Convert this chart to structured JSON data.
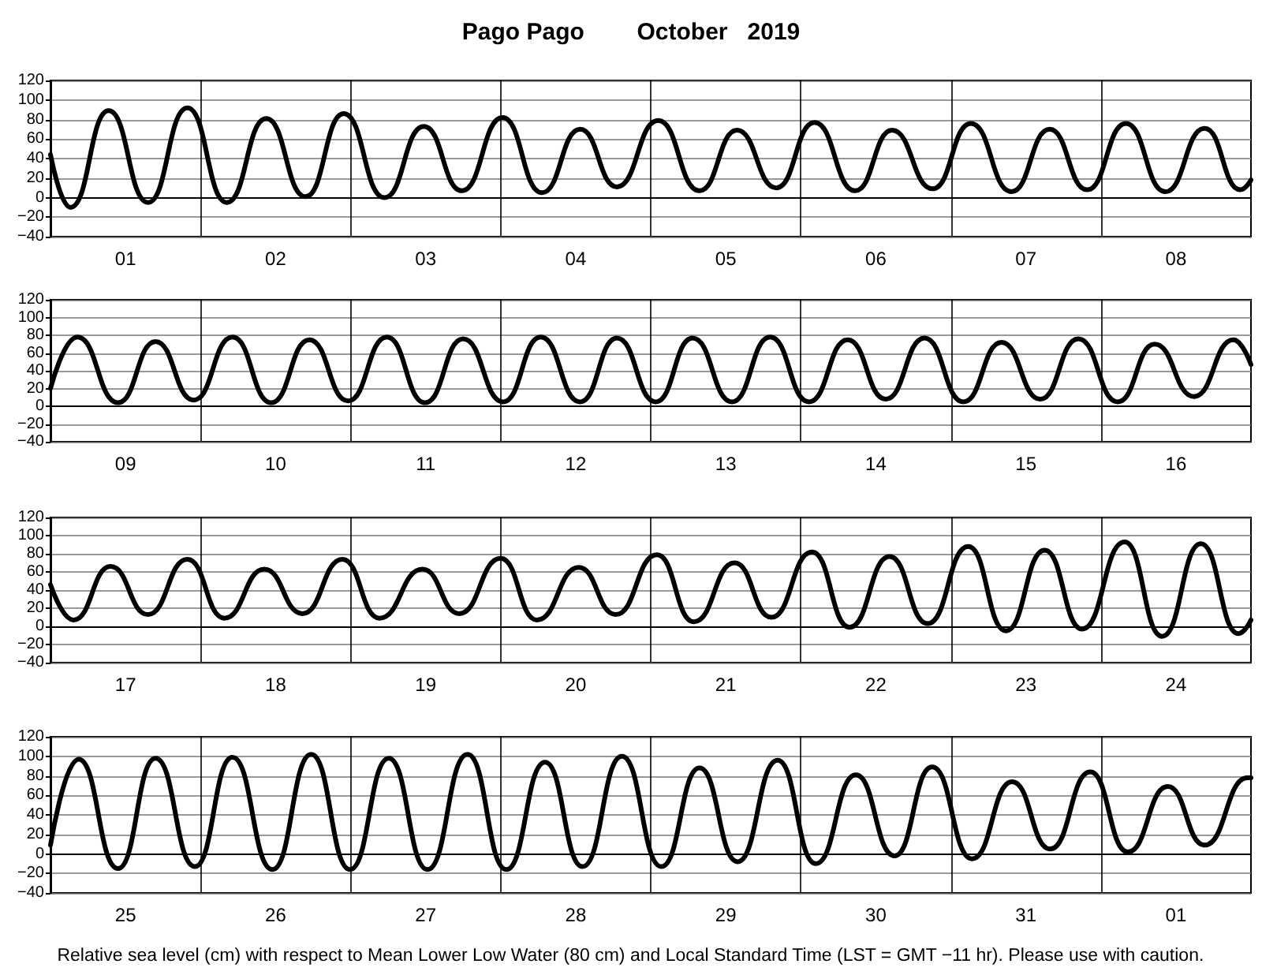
{
  "chart_data": [
    {
      "type": "line",
      "title": "Pago Pago        October   2019",
      "color": "#000000",
      "grid": true,
      "x": [
        "2019-10-01T00:00",
        "2019-10-01T03:12",
        "2019-10-01T09:18",
        "2019-10-01T15:36",
        "2019-10-01T21:54",
        "2019-10-02T04:12",
        "2019-10-02T10:30",
        "2019-10-02T16:48",
        "2019-10-02T22:54",
        "2019-10-03T05:24",
        "2019-10-03T11:42",
        "2019-10-03T17:48",
        "2019-10-04T00:18",
        "2019-10-04T06:36",
        "2019-10-04T12:42",
        "2019-10-04T18:36",
        "2019-10-05T01:12",
        "2019-10-05T07:48",
        "2019-10-05T13:48",
        "2019-10-05T20:06",
        "2019-10-06T02:12",
        "2019-10-06T08:42",
        "2019-10-06T14:36",
        "2019-10-06T21:06",
        "2019-10-07T03:12",
        "2019-10-07T09:42",
        "2019-10-07T15:48",
        "2019-10-07T21:48",
        "2019-10-08T04:00",
        "2019-10-08T10:18",
        "2019-10-08T16:36",
        "2019-10-08T22:18",
        "2019-10-09T00:00"
      ],
      "values": [
        44,
        -10,
        89,
        -5,
        92,
        -5,
        81,
        1,
        86,
        0,
        73,
        7,
        82,
        5,
        70,
        11,
        79,
        7,
        69,
        10,
        77,
        7,
        69,
        9,
        76,
        6,
        70,
        8,
        76,
        6,
        71,
        8,
        18
      ],
      "xlim": [
        "2019-10-01",
        "2019-10-09"
      ],
      "xticks": [
        {
          "value": "2019-10-01T12:00",
          "label": "01"
        },
        {
          "value": "2019-10-02",
          "label": null
        },
        {
          "value": "2019-10-02T12:00",
          "label": "02"
        },
        {
          "value": "2019-10-03",
          "label": null
        },
        {
          "value": "2019-10-03T12:00",
          "label": "03"
        },
        {
          "value": "2019-10-04",
          "label": null
        },
        {
          "value": "2019-10-04T12:00",
          "label": "04"
        },
        {
          "value": "2019-10-05",
          "label": null
        },
        {
          "value": "2019-10-05T12:00",
          "label": "05"
        },
        {
          "value": "2019-10-06",
          "label": null
        },
        {
          "value": "2019-10-06T12:00",
          "label": "06"
        },
        {
          "value": "2019-10-07",
          "label": null
        },
        {
          "value": "2019-10-07T12:00",
          "label": "07"
        },
        {
          "value": "2019-10-08",
          "label": null
        },
        {
          "value": "2019-10-08T12:00",
          "label": "08"
        }
      ],
      "ylim": [
        -40,
        120
      ],
      "yticks": [
        -40,
        -20,
        0,
        20,
        40,
        60,
        80,
        100,
        120
      ]
    },
    {
      "type": "line",
      "color": "#000000",
      "grid": true,
      "x": [
        "2019-10-09T00:00",
        "2019-10-09T04:18",
        "2019-10-09T10:48",
        "2019-10-09T16:48",
        "2019-10-09T22:54",
        "2019-10-10T05:06",
        "2019-10-10T11:18",
        "2019-10-10T17:24",
        "2019-10-10T23:36",
        "2019-10-11T05:48",
        "2019-10-11T11:54",
        "2019-10-11T18:00",
        "2019-10-12T00:24",
        "2019-10-12T06:24",
        "2019-10-12T12:42",
        "2019-10-12T18:36",
        "2019-10-13T00:48",
        "2019-10-13T06:42",
        "2019-10-13T13:00",
        "2019-10-13T19:06",
        "2019-10-14T01:18",
        "2019-10-14T07:30",
        "2019-10-14T13:36",
        "2019-10-14T19:48",
        "2019-10-15T02:00",
        "2019-10-15T08:06",
        "2019-10-15T14:18",
        "2019-10-15T20:24",
        "2019-10-16T02:42",
        "2019-10-16T08:36",
        "2019-10-16T14:54",
        "2019-10-16T21:12",
        "2019-10-17T00:00"
      ],
      "values": [
        20,
        78,
        4,
        73,
        7,
        78,
        4,
        75,
        6,
        78,
        4,
        76,
        5,
        78,
        5,
        77,
        5,
        77,
        5,
        78,
        5,
        75,
        8,
        77,
        5,
        72,
        8,
        76,
        5,
        70,
        11,
        75,
        47
      ],
      "xlim": [
        "2019-10-09",
        "2019-10-17"
      ],
      "xticks": [
        {
          "value": "2019-10-09T12:00",
          "label": "09"
        },
        {
          "value": "2019-10-10",
          "label": null
        },
        {
          "value": "2019-10-10T12:00",
          "label": "10"
        },
        {
          "value": "2019-10-11",
          "label": null
        },
        {
          "value": "2019-10-11T12:00",
          "label": "11"
        },
        {
          "value": "2019-10-12",
          "label": null
        },
        {
          "value": "2019-10-12T12:00",
          "label": "12"
        },
        {
          "value": "2019-10-13",
          "label": null
        },
        {
          "value": "2019-10-13T12:00",
          "label": "13"
        },
        {
          "value": "2019-10-14",
          "label": null
        },
        {
          "value": "2019-10-14T12:00",
          "label": "14"
        },
        {
          "value": "2019-10-15",
          "label": null
        },
        {
          "value": "2019-10-15T12:00",
          "label": "15"
        },
        {
          "value": "2019-10-16",
          "label": null
        },
        {
          "value": "2019-10-16T12:00",
          "label": "16"
        }
      ],
      "ylim": [
        -40,
        120
      ],
      "yticks": [
        -40,
        -20,
        0,
        20,
        40,
        60,
        80,
        100,
        120
      ]
    },
    {
      "type": "line",
      "color": "#000000",
      "grid": true,
      "x": [
        "2019-10-17T00:00",
        "2019-10-17T03:42",
        "2019-10-17T09:36",
        "2019-10-17T15:36",
        "2019-10-17T21:54",
        "2019-10-18T03:48",
        "2019-10-18T10:12",
        "2019-10-18T16:18",
        "2019-10-18T22:42",
        "2019-10-19T04:36",
        "2019-10-19T11:30",
        "2019-10-19T17:24",
        "2019-10-20T00:00",
        "2019-10-20T05:48",
        "2019-10-20T12:30",
        "2019-10-20T18:24",
        "2019-10-21T01:00",
        "2019-10-21T06:54",
        "2019-10-21T13:24",
        "2019-10-21T19:18",
        "2019-10-22T01:48",
        "2019-10-22T07:48",
        "2019-10-22T14:12",
        "2019-10-22T20:18",
        "2019-10-23T02:48",
        "2019-10-23T08:48",
        "2019-10-23T15:00",
        "2019-10-23T21:00",
        "2019-10-24T03:48",
        "2019-10-24T09:48",
        "2019-10-24T16:00",
        "2019-10-24T22:00",
        "2019-10-25T00:00"
      ],
      "values": [
        46,
        7,
        66,
        13,
        74,
        9,
        63,
        14,
        74,
        9,
        63,
        14,
        75,
        7,
        65,
        13,
        79,
        5,
        70,
        10,
        82,
        -1,
        77,
        3,
        88,
        -5,
        84,
        -3,
        93,
        -11,
        91,
        -8,
        7
      ],
      "xlim": [
        "2019-10-17",
        "2019-10-25"
      ],
      "xticks": [
        {
          "value": "2019-10-17T12:00",
          "label": "17"
        },
        {
          "value": "2019-10-18",
          "label": null
        },
        {
          "value": "2019-10-18T12:00",
          "label": "18"
        },
        {
          "value": "2019-10-19",
          "label": null
        },
        {
          "value": "2019-10-19T12:00",
          "label": "19"
        },
        {
          "value": "2019-10-20",
          "label": null
        },
        {
          "value": "2019-10-20T12:00",
          "label": "20"
        },
        {
          "value": "2019-10-21",
          "label": null
        },
        {
          "value": "2019-10-21T12:00",
          "label": "21"
        },
        {
          "value": "2019-10-22",
          "label": null
        },
        {
          "value": "2019-10-22T12:00",
          "label": "22"
        },
        {
          "value": "2019-10-23",
          "label": null
        },
        {
          "value": "2019-10-23T12:00",
          "label": "23"
        },
        {
          "value": "2019-10-24",
          "label": null
        },
        {
          "value": "2019-10-24T12:00",
          "label": "24"
        }
      ],
      "ylim": [
        -40,
        120
      ],
      "yticks": [
        -40,
        -20,
        0,
        20,
        40,
        60,
        80,
        100,
        120
      ]
    },
    {
      "type": "line",
      "color": "#000000",
      "grid": true,
      "x": [
        "2019-10-25T00:00",
        "2019-10-25T04:30",
        "2019-10-25T10:48",
        "2019-10-25T16:48",
        "2019-10-25T23:06",
        "2019-10-26T05:06",
        "2019-10-26T11:30",
        "2019-10-26T17:42",
        "2019-10-26T23:54",
        "2019-10-27T06:06",
        "2019-10-27T12:18",
        "2019-10-27T18:42",
        "2019-10-28T00:54",
        "2019-10-28T07:06",
        "2019-10-28T13:06",
        "2019-10-28T19:24",
        "2019-10-29T01:42",
        "2019-10-29T07:48",
        "2019-10-29T13:54",
        "2019-10-29T20:18",
        "2019-10-30T02:24",
        "2019-10-30T08:48",
        "2019-10-30T15:00",
        "2019-10-30T21:00",
        "2019-10-31T03:24",
        "2019-10-31T09:48",
        "2019-10-31T15:54",
        "2019-10-31T22:18",
        "2019-11-01T04:18",
        "2019-11-01T10:42",
        "2019-11-01T16:36",
        "2019-11-01T23:24",
        "2019-11-02T00:00"
      ],
      "values": [
        9,
        97,
        -15,
        98,
        -13,
        99,
        -16,
        102,
        -16,
        98,
        -16,
        102,
        -16,
        94,
        -13,
        100,
        -13,
        88,
        -8,
        96,
        -10,
        81,
        -2,
        89,
        -5,
        74,
        5,
        84,
        2,
        69,
        9,
        78,
        78
      ],
      "xlim": [
        "2019-10-25",
        "2019-11-02"
      ],
      "xticks": [
        {
          "value": "2019-10-25T12:00",
          "label": "25"
        },
        {
          "value": "2019-10-26",
          "label": null
        },
        {
          "value": "2019-10-26T12:00",
          "label": "26"
        },
        {
          "value": "2019-10-27",
          "label": null
        },
        {
          "value": "2019-10-27T12:00",
          "label": "27"
        },
        {
          "value": "2019-10-28",
          "label": null
        },
        {
          "value": "2019-10-28T12:00",
          "label": "28"
        },
        {
          "value": "2019-10-29",
          "label": null
        },
        {
          "value": "2019-10-29T12:00",
          "label": "29"
        },
        {
          "value": "2019-10-30",
          "label": null
        },
        {
          "value": "2019-10-30T12:00",
          "label": "30"
        },
        {
          "value": "2019-10-31",
          "label": null
        },
        {
          "value": "2019-10-31T12:00",
          "label": "31"
        },
        {
          "value": "2019-11-01",
          "label": null
        },
        {
          "value": "2019-11-01T12:00",
          "label": "01"
        }
      ],
      "ylim": [
        -40,
        120
      ],
      "yticks": [
        -40,
        -20,
        0,
        20,
        40,
        60,
        80,
        100,
        120
      ],
      "annotations": [
        "Relative sea level (cm) with respect to Mean Lower Low Water (80 cm) and Local Standard Time (LST = GMT −11 hr). Please use with caution."
      ]
    }
  ]
}
